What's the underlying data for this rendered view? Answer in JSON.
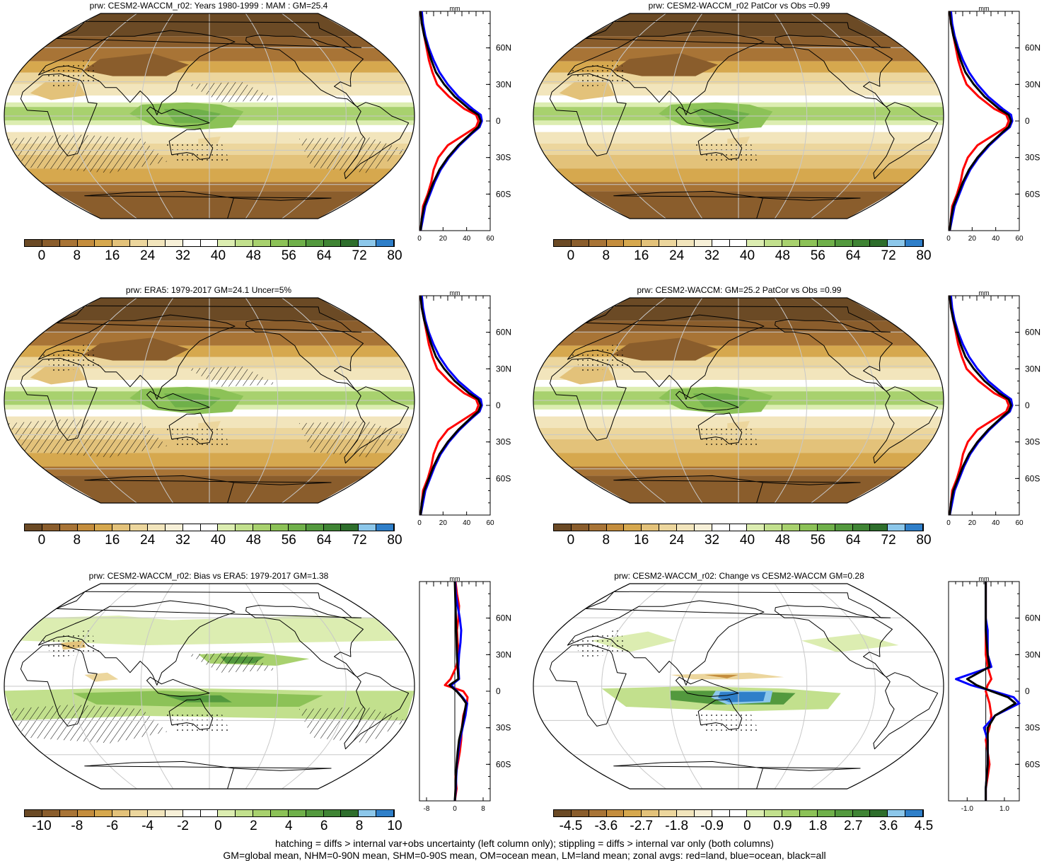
{
  "colors": {
    "brown": [
      "#6b4a25",
      "#8a5d2c",
      "#a87436",
      "#c48d3d",
      "#d6a84e",
      "#e3c27a",
      "#ecd69d",
      "#f2e5bc",
      "#f7f0d8"
    ],
    "white": "#ffffff",
    "green": [
      "#dcedb1",
      "#c2e08d",
      "#a8d16e",
      "#8cc257",
      "#6fb04a",
      "#53993e",
      "#3f8434",
      "#2e6e2c"
    ],
    "blue": [
      "#8cc7ea",
      "#2f7fc9"
    ],
    "land_line": "#000000",
    "grid_line": "#c8c8c8",
    "curve_land": "#ff0000",
    "curve_ocean": "#0000ff",
    "curve_all": "#000000"
  },
  "panels": [
    {
      "id": "p1",
      "title": "prw: CESM2-WACCM_r02: Years 1980-1999 : MAM : GM=25.4",
      "kind": "abs",
      "hatch": true,
      "cbar": [
        "0",
        "8",
        "16",
        "24",
        "32",
        "40",
        "48",
        "56",
        "64",
        "72",
        "80"
      ],
      "zonal_ticks": [
        "0",
        "20",
        "40",
        "60"
      ],
      "zonal_unit": "mm",
      "lat_labels": [
        "60N",
        "30N",
        "0",
        "30S",
        "60S"
      ]
    },
    {
      "id": "p2",
      "title": "prw: CESM2-WACCM_r02 PatCor vs Obs =0.99",
      "kind": "abs",
      "hatch": false,
      "cbar": [
        "0",
        "8",
        "16",
        "24",
        "32",
        "40",
        "48",
        "56",
        "64",
        "72",
        "80"
      ],
      "zonal_ticks": [
        "0",
        "20",
        "40",
        "60"
      ],
      "zonal_unit": "mm",
      "lat_labels": [
        "60N",
        "30N",
        "0",
        "30S",
        "60S"
      ]
    },
    {
      "id": "p3",
      "title": "prw: ERA5: 1979-2017 GM=24.1 Uncer=5%",
      "kind": "abs",
      "hatch": true,
      "cbar": [
        "0",
        "8",
        "16",
        "24",
        "32",
        "40",
        "48",
        "56",
        "64",
        "72",
        "80"
      ],
      "zonal_ticks": [
        "0",
        "20",
        "40",
        "60"
      ],
      "zonal_unit": "mm",
      "lat_labels": [
        "60N",
        "30N",
        "0",
        "30S",
        "60S"
      ]
    },
    {
      "id": "p4",
      "title": "prw: CESM2-WACCM: GM=25.2 PatCor vs Obs =0.99",
      "kind": "abs",
      "hatch": false,
      "cbar": [
        "0",
        "8",
        "16",
        "24",
        "32",
        "40",
        "48",
        "56",
        "64",
        "72",
        "80"
      ],
      "zonal_ticks": [
        "0",
        "20",
        "40",
        "60"
      ],
      "zonal_unit": "mm",
      "lat_labels": [
        "60N",
        "30N",
        "0",
        "30S",
        "60S"
      ]
    },
    {
      "id": "p5",
      "title": "prw: CESM2-WACCM_r02: Bias vs ERA5: 1979-2017 GM=1.38",
      "kind": "bias",
      "hatch": true,
      "cbar": [
        "-10",
        "-8",
        "-6",
        "-4",
        "-2",
        "0",
        "2",
        "4",
        "6",
        "8",
        "10"
      ],
      "zonal_ticks": [
        "-8",
        "0",
        "8"
      ],
      "zonal_unit": "mm",
      "lat_labels": [
        "60N",
        "30N",
        "0",
        "30S",
        "60S"
      ]
    },
    {
      "id": "p6",
      "title": "prw: CESM2-WACCM_r02: Change vs CESM2-WACCM GM=0.28",
      "kind": "change",
      "hatch": false,
      "cbar": [
        "-4.5",
        "-3.6",
        "-2.7",
        "-1.8",
        "-0.9",
        "0",
        "0.9",
        "1.8",
        "2.7",
        "3.6",
        "4.5"
      ],
      "zonal_ticks": [
        "-1.0",
        "1.0"
      ],
      "zonal_unit": "mm",
      "lat_labels": [
        "60N",
        "30N",
        "0",
        "30S",
        "60S"
      ]
    }
  ],
  "zonal_profiles": {
    "abs": {
      "lat": [
        -90,
        -80,
        -70,
        -60,
        -50,
        -40,
        -30,
        -20,
        -10,
        -5,
        0,
        5,
        10,
        20,
        30,
        40,
        50,
        60,
        70,
        80,
        90
      ],
      "all": [
        1,
        2,
        4,
        8,
        12,
        17,
        24,
        33,
        44,
        50,
        52,
        50,
        42,
        30,
        21,
        14,
        10,
        7,
        4,
        2,
        1
      ],
      "ocean": [
        1,
        3,
        5,
        9,
        13,
        18,
        25,
        34,
        45,
        51,
        53,
        52,
        45,
        33,
        24,
        17,
        12,
        8,
        5,
        3,
        2
      ],
      "land": [
        1,
        2,
        3,
        7,
        10,
        12,
        16,
        24,
        40,
        48,
        50,
        48,
        38,
        25,
        15,
        11,
        8,
        6,
        4,
        2,
        1
      ]
    },
    "bias": {
      "lat": [
        -90,
        -80,
        -70,
        -60,
        -50,
        -40,
        -30,
        -20,
        -10,
        -5,
        0,
        5,
        10,
        20,
        30,
        40,
        50,
        60,
        70,
        80,
        90
      ],
      "all": [
        0,
        0.2,
        0.3,
        0.5,
        0.8,
        1.2,
        2.0,
        2.6,
        3.2,
        2.0,
        0.5,
        -1.5,
        1.0,
        0.8,
        0.6,
        0.5,
        0.4,
        0.3,
        0.2,
        0.1,
        0
      ],
      "ocean": [
        0,
        0.3,
        0.4,
        0.6,
        1.0,
        1.5,
        2.2,
        3.0,
        3.5,
        2.2,
        0.6,
        -1.0,
        1.2,
        1.0,
        1.2,
        1.6,
        1.8,
        1.4,
        0.8,
        0.3,
        0.1
      ],
      "land": [
        0,
        0.5,
        0.2,
        0.8,
        1.4,
        1.8,
        2.0,
        2.4,
        3.4,
        3.6,
        2.4,
        -2.8,
        -1.2,
        0.4,
        1.2,
        0.8,
        0.6,
        1.0,
        1.2,
        0.6,
        0.2
      ]
    },
    "change": {
      "lat": [
        -90,
        -80,
        -70,
        -60,
        -50,
        -40,
        -30,
        -20,
        -10,
        -5,
        0,
        5,
        10,
        20,
        30,
        40,
        50,
        60,
        70,
        80,
        90
      ],
      "all": [
        0,
        0.0,
        0.05,
        0.1,
        0.1,
        0.1,
        0.1,
        0.5,
        1.6,
        1.2,
        0.3,
        -0.5,
        -1.0,
        0.2,
        0.1,
        0.05,
        0.0,
        0.0,
        0.0,
        0.0,
        0
      ],
      "ocean": [
        0,
        0.0,
        0.05,
        0.1,
        0.1,
        0.1,
        -0.1,
        0.5,
        1.8,
        1.5,
        0.4,
        -0.8,
        -1.6,
        0.3,
        0.1,
        0.1,
        0.1,
        0.0,
        0.0,
        0.0,
        0
      ],
      "land": [
        0,
        0.0,
        0.1,
        0.2,
        0.1,
        0.0,
        0.2,
        0.3,
        0.2,
        0.1,
        0.0,
        0.1,
        0.3,
        0.1,
        0.0,
        0.0,
        0.0,
        0.0,
        0.0,
        0.0,
        0
      ]
    }
  },
  "footer": {
    "line1": "hatching = diffs > internal var+obs uncertainty (left column only); stippling = diffs > internal var only (both columns)",
    "line2": "GM=global mean, NHM=0-90N mean, SHM=0-90S mean, OM=ocean mean, LM=land mean; zonal avgs: red=land, blue=ocean, black=all"
  }
}
